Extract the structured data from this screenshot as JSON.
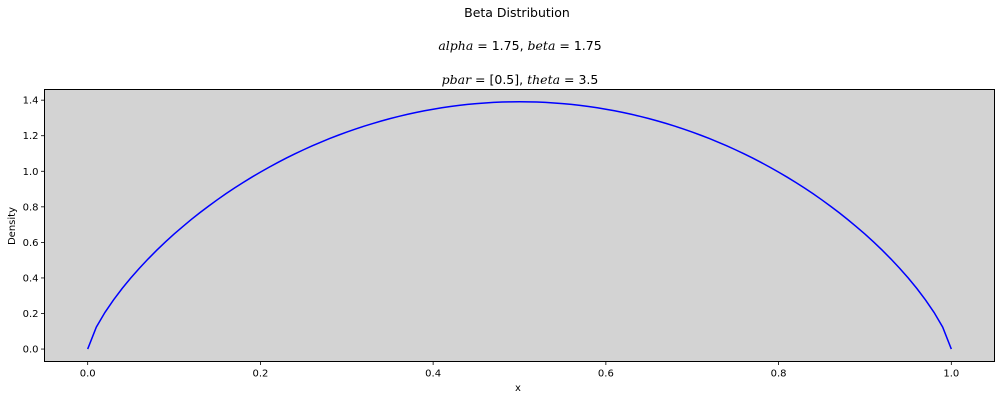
{
  "chart_data": {
    "type": "line",
    "title": {
      "line1": "Beta Distribution",
      "line2": {
        "a_name": "alpha",
        "a_value": "1.75",
        "b_name": "beta",
        "b_value": "1.75"
      },
      "line3": {
        "a_name": "pbar",
        "a_value": "[0.5]",
        "b_name": "theta",
        "b_value": "3.5"
      }
    },
    "xlabel": "x",
    "ylabel": "Density",
    "xlim": [
      -0.05,
      1.05
    ],
    "ylim": [
      -0.07,
      1.46
    ],
    "xticks": [
      "0.0",
      "0.2",
      "0.4",
      "0.6",
      "0.8",
      "1.0"
    ],
    "yticks": [
      "0.0",
      "0.2",
      "0.4",
      "0.6",
      "0.8",
      "1.0",
      "1.2",
      "1.4"
    ],
    "background_color": "#d3d3d3",
    "line_color": "#0000ff",
    "grid": false,
    "series": [
      {
        "distribution": "beta",
        "alpha": 1.75,
        "beta": 1.75,
        "x_range": [
          0,
          1
        ],
        "n_points": 101
      }
    ]
  }
}
